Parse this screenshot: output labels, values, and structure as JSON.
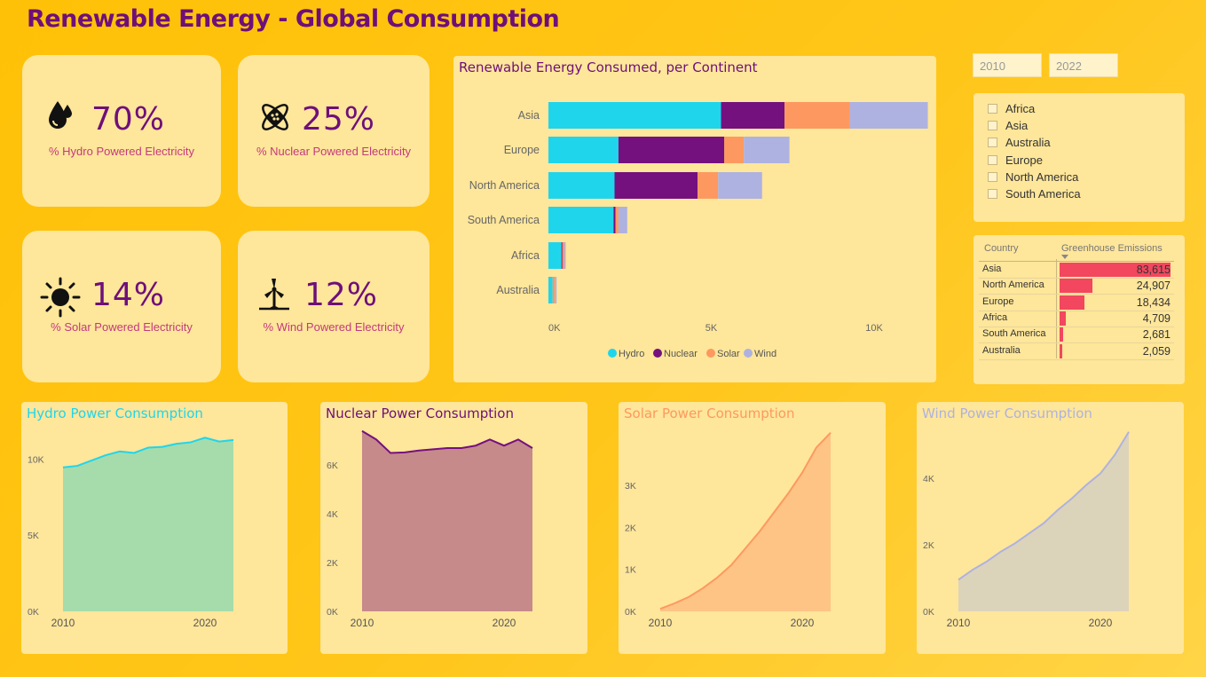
{
  "title": "Renewable Energy - Global Consumption",
  "colors": {
    "hydro": "#1fd5ec",
    "nuclear": "#75107f",
    "solar": "#fd9960",
    "wind": "#aeb2e0",
    "title": "#6e0f7a",
    "kpi_label": "#c23a7d",
    "emission_bar": "#f2475e"
  },
  "kpis": [
    {
      "icon": "water-drop-icon",
      "value": "70%",
      "label": "% Hydro Powered Electricity"
    },
    {
      "icon": "atom-icon",
      "value": "25%",
      "label": "% Nuclear Powered Electricity"
    },
    {
      "icon": "sun-icon",
      "value": "14%",
      "label": "% Solar Powered Electricity"
    },
    {
      "icon": "wind-turbine-icon",
      "value": "12%",
      "label": "% Wind Powered Electricity"
    }
  ],
  "date_range": {
    "start": "2010",
    "end": "2022"
  },
  "slicer": {
    "items": [
      "Africa",
      "Asia",
      "Australia",
      "Europe",
      "North America",
      "South America"
    ]
  },
  "emissions_table": {
    "headers": {
      "country": "Country",
      "emissions": "Greenhouse Emissions"
    },
    "rows": [
      {
        "country": "Asia",
        "value": "83,615",
        "num": 83615
      },
      {
        "country": "North America",
        "value": "24,907",
        "num": 24907
      },
      {
        "country": "Europe",
        "value": "18,434",
        "num": 18434
      },
      {
        "country": "Africa",
        "value": "4,709",
        "num": 4709
      },
      {
        "country": "South America",
        "value": "2,681",
        "num": 2681
      },
      {
        "country": "Australia",
        "value": "2,059",
        "num": 2059
      }
    ]
  },
  "chart_data": [
    {
      "type": "bar",
      "title": "Renewable Energy Consumed, per Continent",
      "orientation": "horizontal",
      "stacked": true,
      "categories": [
        "Asia",
        "Europe",
        "North America",
        "South America",
        "Africa",
        "Australia"
      ],
      "series": [
        {
          "name": "Hydro",
          "values": [
            5300,
            2150,
            2030,
            2000,
            400,
            130
          ]
        },
        {
          "name": "Nuclear",
          "values": [
            1950,
            3250,
            2550,
            60,
            30,
            0
          ]
        },
        {
          "name": "Solar",
          "values": [
            2000,
            600,
            630,
            90,
            60,
            70
          ]
        },
        {
          "name": "Wind",
          "values": [
            2400,
            1400,
            1350,
            270,
            40,
            50
          ]
        }
      ],
      "x_ticks": [
        "0K",
        "5K",
        "10K"
      ],
      "xlim": [
        0,
        12000
      ],
      "legend": "bottom"
    },
    {
      "type": "area",
      "title": "Hydro Power Consumption",
      "x": [
        2010,
        2011,
        2012,
        2013,
        2014,
        2015,
        2016,
        2017,
        2018,
        2019,
        2020,
        2021,
        2022
      ],
      "values": [
        9450,
        9550,
        9900,
        10250,
        10500,
        10400,
        10750,
        10800,
        11000,
        11100,
        11400,
        11150,
        11250
      ],
      "y_ticks": [
        "0K",
        "5K",
        "10K"
      ],
      "ylim": [
        0,
        12000
      ],
      "x_ticks": [
        "2010",
        "2020"
      ]
    },
    {
      "type": "area",
      "title": "Nuclear Power Consumption",
      "x": [
        2010,
        2011,
        2012,
        2013,
        2014,
        2015,
        2016,
        2017,
        2018,
        2019,
        2020,
        2021,
        2022
      ],
      "values": [
        7400,
        7050,
        6500,
        6520,
        6600,
        6650,
        6700,
        6700,
        6800,
        7050,
        6800,
        7050,
        6700
      ],
      "y_ticks": [
        "0K",
        "2K",
        "4K",
        "6K"
      ],
      "ylim": [
        0,
        7500
      ],
      "x_ticks": [
        "2010",
        "2020"
      ]
    },
    {
      "type": "area",
      "title": "Solar Power Consumption",
      "x": [
        2010,
        2011,
        2012,
        2013,
        2014,
        2015,
        2016,
        2017,
        2018,
        2019,
        2020,
        2021,
        2022
      ],
      "values": [
        60,
        190,
        340,
        550,
        800,
        1100,
        1500,
        1900,
        2350,
        2800,
        3300,
        3900,
        4250
      ],
      "y_ticks": [
        "0K",
        "1K",
        "2K",
        "3K"
      ],
      "ylim": [
        0,
        4350
      ],
      "x_ticks": [
        "2010",
        "2020"
      ]
    },
    {
      "type": "area",
      "title": "Wind Power Consumption",
      "x": [
        2010,
        2011,
        2012,
        2013,
        2014,
        2015,
        2016,
        2017,
        2018,
        2019,
        2020,
        2021,
        2022
      ],
      "values": [
        950,
        1250,
        1500,
        1800,
        2050,
        2350,
        2650,
        3050,
        3400,
        3800,
        4150,
        4700,
        5400
      ],
      "y_ticks": [
        "0K",
        "2K",
        "4K"
      ],
      "ylim": [
        0,
        5500
      ],
      "x_ticks": [
        "2010",
        "2020"
      ]
    }
  ]
}
